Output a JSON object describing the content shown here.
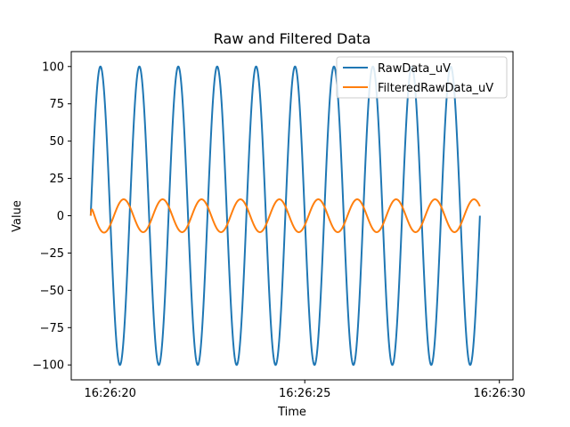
{
  "chart_data": {
    "type": "line",
    "title": "Raw and Filtered Data",
    "xlabel": "Time",
    "ylabel": "Value",
    "x_type": "time",
    "xlim": [
      "16:26:19.00",
      "16:26:30.35"
    ],
    "ylim": [
      -110,
      110
    ],
    "x_ticks": [
      "16:26:20",
      "16:26:25",
      "16:26:30"
    ],
    "y_ticks": [
      100,
      75,
      50,
      25,
      0,
      -25,
      -50,
      -75,
      -100
    ],
    "y_tick_labels": [
      "100",
      "75",
      "50",
      "25",
      "0",
      "−25",
      "−50",
      "−75",
      "−100"
    ],
    "grid": false,
    "legend_position": "top-right",
    "series": [
      {
        "name": "RawData_uV",
        "color": "#1f77b4",
        "x_start": "16:26:19.50",
        "x_end": "16:26:29.50",
        "shape": "sine",
        "amplitude": 100,
        "frequency_hz": 1.0,
        "phase_deg": 0
      },
      {
        "name": "FilteredRawData_uV",
        "color": "#ff7f0e",
        "x_start": "16:26:19.50",
        "x_end": "16:26:29.50",
        "shape": "sine",
        "amplitude": 11,
        "frequency_hz": 1.0,
        "phase_deg": 145,
        "initial_peak": 14
      }
    ]
  }
}
